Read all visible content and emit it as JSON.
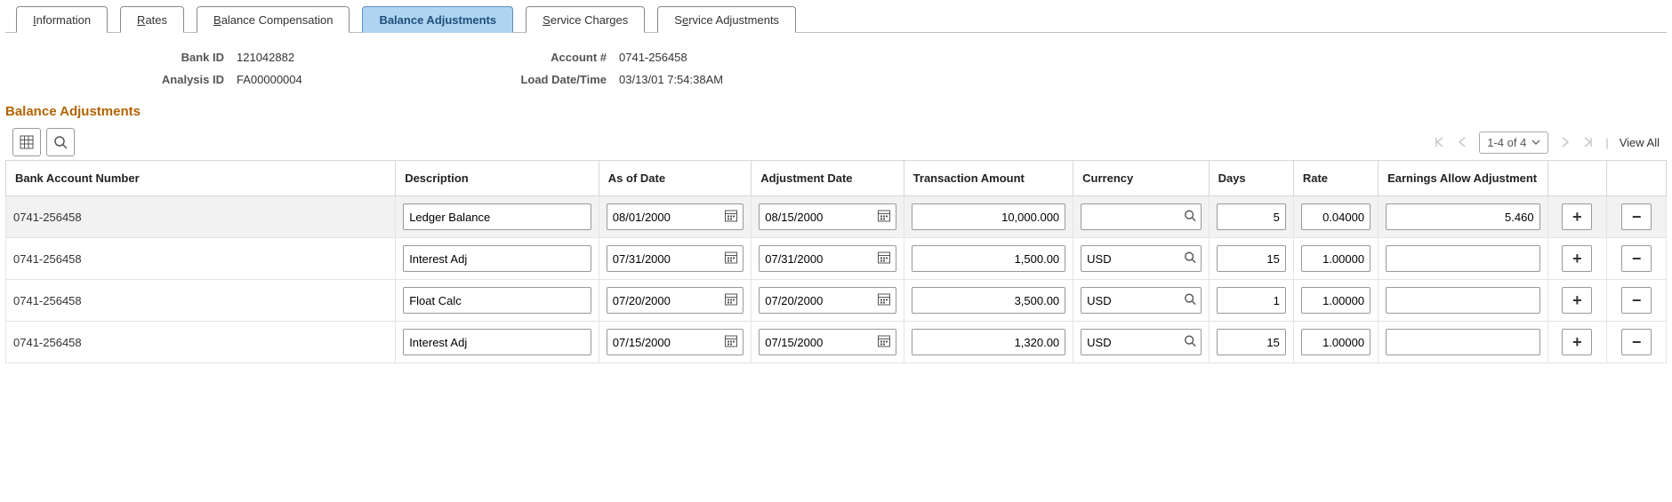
{
  "tabs": [
    {
      "label": "Information",
      "underline": "I",
      "rest": "nformation",
      "active": false
    },
    {
      "label": "Rates",
      "underline": "R",
      "rest": "ates",
      "active": false
    },
    {
      "label": "Balance Compensation",
      "underline": "B",
      "rest": "alance Compensation",
      "active": false
    },
    {
      "label": "Balance Adjustments",
      "underline": "",
      "rest": "Balance Adjustments",
      "active": true
    },
    {
      "label": "Service Charges",
      "underline": "S",
      "rest": "ervice Charges",
      "active": false
    },
    {
      "label": "Service Adjustments",
      "underline": "e",
      "pre": "S",
      "rest": "rvice Adjustments",
      "active": false
    }
  ],
  "header": {
    "bank_id_label": "Bank ID",
    "bank_id": "121042882",
    "account_label": "Account #",
    "account": "0741-256458",
    "analysis_id_label": "Analysis ID",
    "analysis_id": "FA00000004",
    "load_label": "Load Date/Time",
    "load": "03/13/01  7:54:38AM"
  },
  "section_title": "Balance Adjustments",
  "toolbar": {
    "range": "1-4 of 4",
    "viewall": "View All"
  },
  "columns": {
    "bank": "Bank Account Number",
    "desc": "Description",
    "asof": "As of Date",
    "adj": "Adjustment Date",
    "amt": "Transaction Amount",
    "curr": "Currency",
    "days": "Days",
    "rate": "Rate",
    "earn": "Earnings Allow Adjustment"
  },
  "rows": [
    {
      "bank": "0741-256458",
      "desc": "Ledger Balance",
      "asof": "08/01/2000",
      "adj": "08/15/2000",
      "amt": "10,000.000",
      "curr": "",
      "days": "5",
      "rate": "0.04000",
      "earn": "5.460"
    },
    {
      "bank": "0741-256458",
      "desc": "Interest Adj",
      "asof": "07/31/2000",
      "adj": "07/31/2000",
      "amt": "1,500.00",
      "curr": "USD",
      "days": "15",
      "rate": "1.00000",
      "earn": ""
    },
    {
      "bank": "0741-256458",
      "desc": "Float Calc",
      "asof": "07/20/2000",
      "adj": "07/20/2000",
      "amt": "3,500.00",
      "curr": "USD",
      "days": "1",
      "rate": "1.00000",
      "earn": ""
    },
    {
      "bank": "0741-256458",
      "desc": "Interest Adj",
      "asof": "07/15/2000",
      "adj": "07/15/2000",
      "amt": "1,320.00",
      "curr": "USD",
      "days": "15",
      "rate": "1.00000",
      "earn": ""
    }
  ],
  "colors": {
    "tab_active_bg": "#aed4f2",
    "section_title": "#b26300",
    "border_grey": "#d6d6d6"
  }
}
